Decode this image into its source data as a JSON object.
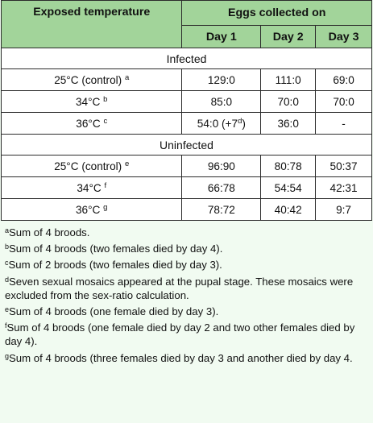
{
  "header": {
    "exposed_temperature": "Exposed temperature",
    "eggs_collected_on": "Eggs collected on",
    "days": [
      "Day 1",
      "Day 2",
      "Day 3"
    ]
  },
  "sections": [
    {
      "label": "Infected",
      "rows": [
        {
          "condition": "25°C (control)",
          "sup": "a",
          "d1": "129:0",
          "d1_sup": "",
          "d1_tail": "",
          "d2": "111:0",
          "d3": "69:0"
        },
        {
          "condition": "34°C",
          "sup": "b",
          "d1": "85:0",
          "d1_sup": "",
          "d1_tail": "",
          "d2": "70:0",
          "d3": "70:0"
        },
        {
          "condition": "36°C",
          "sup": "c",
          "d1": "54:0 (+7",
          "d1_sup": "d",
          "d1_tail": ")",
          "d2": "36:0",
          "d3": "-"
        }
      ]
    },
    {
      "label": "Uninfected",
      "rows": [
        {
          "condition": "25°C (control)",
          "sup": "e",
          "d1": "96:90",
          "d1_sup": "",
          "d1_tail": "",
          "d2": "80:78",
          "d3": "50:37"
        },
        {
          "condition": "34°C",
          "sup": "f",
          "d1": "66:78",
          "d1_sup": "",
          "d1_tail": "",
          "d2": "54:54",
          "d3": "42:31"
        },
        {
          "condition": "36°C",
          "sup": "g",
          "d1": "78:72",
          "d1_sup": "",
          "d1_tail": "",
          "d2": "40:42",
          "d3": "9:7"
        }
      ]
    }
  ],
  "footnotes": [
    {
      "mark": "a",
      "text": "Sum of 4 broods."
    },
    {
      "mark": "b",
      "text": "Sum of 4 broods (two females died by day 4)."
    },
    {
      "mark": "c",
      "text": "Sum of 2 broods (two females died by day 3)."
    },
    {
      "mark": "d",
      "text": "Seven sexual mosaics appeared at the pupal stage. These mosaics were excluded from the sex-ratio calculation."
    },
    {
      "mark": "e",
      "text": "Sum of 4 broods (one female died by day 3)."
    },
    {
      "mark": "f",
      "text": "Sum of 4 broods (one female died by day 2 and two other females died by day 4)."
    },
    {
      "mark": "g",
      "text": "Sum of 4 broods (three females died by day 3 and another died by day 4."
    }
  ]
}
